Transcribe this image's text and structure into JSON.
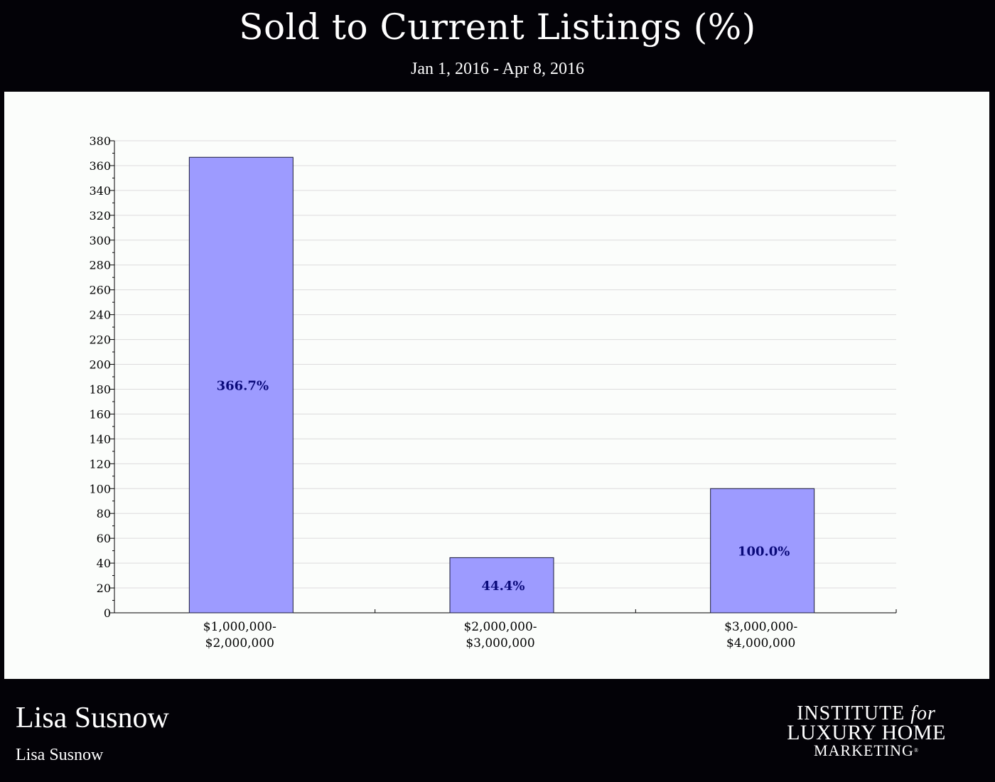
{
  "header": {
    "title": "Sold to Current Listings (%)",
    "subtitle": "Jan 1, 2016 - Apr 8, 2016"
  },
  "chart_data": {
    "type": "bar",
    "title": "Sold to Current Listings (%)",
    "subtitle": "Jan 1, 2016 - Apr 8, 2016",
    "categories": [
      [
        "$1,000,000-",
        "$2,000,000"
      ],
      [
        "$2,000,000-",
        "$3,000,000"
      ],
      [
        "$3,000,000-",
        "$4,000,000"
      ]
    ],
    "values": [
      366.7,
      44.4,
      100.0
    ],
    "data_labels": [
      "366.7%",
      "44.4%",
      "100.0%"
    ],
    "ylim": [
      0,
      380
    ],
    "yticks": [
      0,
      20,
      40,
      60,
      80,
      100,
      120,
      140,
      160,
      180,
      200,
      220,
      240,
      260,
      280,
      300,
      320,
      340,
      360,
      380
    ],
    "grid": true,
    "legend": "none",
    "colors": {
      "bar_fill": "#9d9bff",
      "bar_stroke": "#1a1a3a",
      "label": "#0a0a7a",
      "grid": "#dcdcdc",
      "panel": "#fbfdfb"
    }
  },
  "footer": {
    "agent_name": "Lisa Susnow",
    "agent_subtitle": "Lisa Susnow",
    "logo": {
      "line1_a": "INSTITUTE",
      "line1_b": "for",
      "line2": "LUXURY HOME",
      "line3": "MARKETING",
      "reg": "®"
    }
  }
}
